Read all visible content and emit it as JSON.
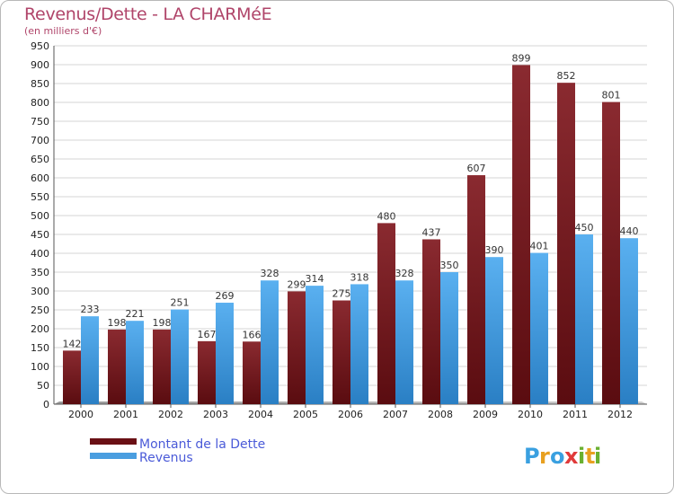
{
  "chart_data": {
    "type": "bar",
    "title": "Revenus/Dette - LA CHARMéE",
    "subtitle": "(en milliers d'€)",
    "categories": [
      "2000",
      "2001",
      "2002",
      "2003",
      "2004",
      "2005",
      "2006",
      "2007",
      "2008",
      "2009",
      "2010",
      "2011",
      "2012"
    ],
    "series": [
      {
        "name": "Montant de la Dette",
        "color": "#7a1a1f",
        "values": [
          142,
          198,
          198,
          167,
          166,
          299,
          275,
          480,
          437,
          607,
          899,
          852,
          801
        ]
      },
      {
        "name": "Revenus",
        "color": "#4a9ee0",
        "values": [
          233,
          221,
          251,
          269,
          328,
          314,
          318,
          328,
          350,
          390,
          401,
          450,
          440
        ]
      }
    ],
    "ylim": [
      0,
      950
    ],
    "yticks": [
      0,
      50,
      100,
      150,
      200,
      250,
      300,
      350,
      400,
      450,
      500,
      550,
      600,
      650,
      700,
      750,
      800,
      850,
      900,
      950
    ],
    "grid": true,
    "legend_position": "bottom-left"
  },
  "branding": {
    "logo_letters": [
      "P",
      "r",
      "o",
      "x",
      "i",
      "t",
      "i"
    ],
    "logo_colors": [
      "#3aa0e0",
      "#e8a020",
      "#3aa0e0",
      "#e03a3a",
      "#6ab030",
      "#e8a020",
      "#6ab030"
    ]
  }
}
